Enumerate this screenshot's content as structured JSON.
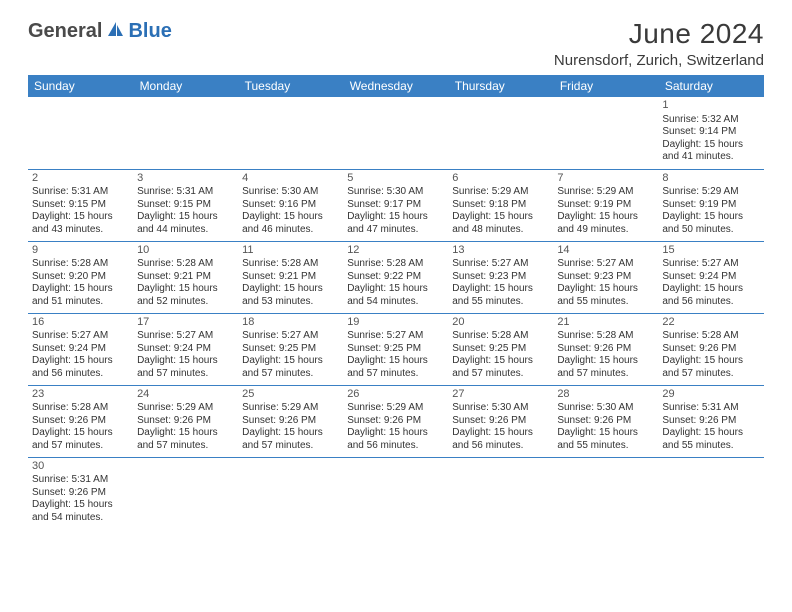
{
  "logo": {
    "part1": "General",
    "part2": "Blue"
  },
  "title": "June 2024",
  "location": "Nurensdorf, Zurich, Switzerland",
  "colors": {
    "header_bg": "#3a80c4",
    "header_text": "#ffffff",
    "border": "#3a80c4",
    "text": "#333333",
    "logo_gray": "#4a4a4a",
    "logo_blue": "#2b6fb5"
  },
  "day_headers": [
    "Sunday",
    "Monday",
    "Tuesday",
    "Wednesday",
    "Thursday",
    "Friday",
    "Saturday"
  ],
  "weeks": [
    [
      null,
      null,
      null,
      null,
      null,
      null,
      {
        "d": "1",
        "sr": "Sunrise: 5:32 AM",
        "ss": "Sunset: 9:14 PM",
        "dl1": "Daylight: 15 hours",
        "dl2": "and 41 minutes."
      }
    ],
    [
      {
        "d": "2",
        "sr": "Sunrise: 5:31 AM",
        "ss": "Sunset: 9:15 PM",
        "dl1": "Daylight: 15 hours",
        "dl2": "and 43 minutes."
      },
      {
        "d": "3",
        "sr": "Sunrise: 5:31 AM",
        "ss": "Sunset: 9:15 PM",
        "dl1": "Daylight: 15 hours",
        "dl2": "and 44 minutes."
      },
      {
        "d": "4",
        "sr": "Sunrise: 5:30 AM",
        "ss": "Sunset: 9:16 PM",
        "dl1": "Daylight: 15 hours",
        "dl2": "and 46 minutes."
      },
      {
        "d": "5",
        "sr": "Sunrise: 5:30 AM",
        "ss": "Sunset: 9:17 PM",
        "dl1": "Daylight: 15 hours",
        "dl2": "and 47 minutes."
      },
      {
        "d": "6",
        "sr": "Sunrise: 5:29 AM",
        "ss": "Sunset: 9:18 PM",
        "dl1": "Daylight: 15 hours",
        "dl2": "and 48 minutes."
      },
      {
        "d": "7",
        "sr": "Sunrise: 5:29 AM",
        "ss": "Sunset: 9:19 PM",
        "dl1": "Daylight: 15 hours",
        "dl2": "and 49 minutes."
      },
      {
        "d": "8",
        "sr": "Sunrise: 5:29 AM",
        "ss": "Sunset: 9:19 PM",
        "dl1": "Daylight: 15 hours",
        "dl2": "and 50 minutes."
      }
    ],
    [
      {
        "d": "9",
        "sr": "Sunrise: 5:28 AM",
        "ss": "Sunset: 9:20 PM",
        "dl1": "Daylight: 15 hours",
        "dl2": "and 51 minutes."
      },
      {
        "d": "10",
        "sr": "Sunrise: 5:28 AM",
        "ss": "Sunset: 9:21 PM",
        "dl1": "Daylight: 15 hours",
        "dl2": "and 52 minutes."
      },
      {
        "d": "11",
        "sr": "Sunrise: 5:28 AM",
        "ss": "Sunset: 9:21 PM",
        "dl1": "Daylight: 15 hours",
        "dl2": "and 53 minutes."
      },
      {
        "d": "12",
        "sr": "Sunrise: 5:28 AM",
        "ss": "Sunset: 9:22 PM",
        "dl1": "Daylight: 15 hours",
        "dl2": "and 54 minutes."
      },
      {
        "d": "13",
        "sr": "Sunrise: 5:27 AM",
        "ss": "Sunset: 9:23 PM",
        "dl1": "Daylight: 15 hours",
        "dl2": "and 55 minutes."
      },
      {
        "d": "14",
        "sr": "Sunrise: 5:27 AM",
        "ss": "Sunset: 9:23 PM",
        "dl1": "Daylight: 15 hours",
        "dl2": "and 55 minutes."
      },
      {
        "d": "15",
        "sr": "Sunrise: 5:27 AM",
        "ss": "Sunset: 9:24 PM",
        "dl1": "Daylight: 15 hours",
        "dl2": "and 56 minutes."
      }
    ],
    [
      {
        "d": "16",
        "sr": "Sunrise: 5:27 AM",
        "ss": "Sunset: 9:24 PM",
        "dl1": "Daylight: 15 hours",
        "dl2": "and 56 minutes."
      },
      {
        "d": "17",
        "sr": "Sunrise: 5:27 AM",
        "ss": "Sunset: 9:24 PM",
        "dl1": "Daylight: 15 hours",
        "dl2": "and 57 minutes."
      },
      {
        "d": "18",
        "sr": "Sunrise: 5:27 AM",
        "ss": "Sunset: 9:25 PM",
        "dl1": "Daylight: 15 hours",
        "dl2": "and 57 minutes."
      },
      {
        "d": "19",
        "sr": "Sunrise: 5:27 AM",
        "ss": "Sunset: 9:25 PM",
        "dl1": "Daylight: 15 hours",
        "dl2": "and 57 minutes."
      },
      {
        "d": "20",
        "sr": "Sunrise: 5:28 AM",
        "ss": "Sunset: 9:25 PM",
        "dl1": "Daylight: 15 hours",
        "dl2": "and 57 minutes."
      },
      {
        "d": "21",
        "sr": "Sunrise: 5:28 AM",
        "ss": "Sunset: 9:26 PM",
        "dl1": "Daylight: 15 hours",
        "dl2": "and 57 minutes."
      },
      {
        "d": "22",
        "sr": "Sunrise: 5:28 AM",
        "ss": "Sunset: 9:26 PM",
        "dl1": "Daylight: 15 hours",
        "dl2": "and 57 minutes."
      }
    ],
    [
      {
        "d": "23",
        "sr": "Sunrise: 5:28 AM",
        "ss": "Sunset: 9:26 PM",
        "dl1": "Daylight: 15 hours",
        "dl2": "and 57 minutes."
      },
      {
        "d": "24",
        "sr": "Sunrise: 5:29 AM",
        "ss": "Sunset: 9:26 PM",
        "dl1": "Daylight: 15 hours",
        "dl2": "and 57 minutes."
      },
      {
        "d": "25",
        "sr": "Sunrise: 5:29 AM",
        "ss": "Sunset: 9:26 PM",
        "dl1": "Daylight: 15 hours",
        "dl2": "and 57 minutes."
      },
      {
        "d": "26",
        "sr": "Sunrise: 5:29 AM",
        "ss": "Sunset: 9:26 PM",
        "dl1": "Daylight: 15 hours",
        "dl2": "and 56 minutes."
      },
      {
        "d": "27",
        "sr": "Sunrise: 5:30 AM",
        "ss": "Sunset: 9:26 PM",
        "dl1": "Daylight: 15 hours",
        "dl2": "and 56 minutes."
      },
      {
        "d": "28",
        "sr": "Sunrise: 5:30 AM",
        "ss": "Sunset: 9:26 PM",
        "dl1": "Daylight: 15 hours",
        "dl2": "and 55 minutes."
      },
      {
        "d": "29",
        "sr": "Sunrise: 5:31 AM",
        "ss": "Sunset: 9:26 PM",
        "dl1": "Daylight: 15 hours",
        "dl2": "and 55 minutes."
      }
    ],
    [
      {
        "d": "30",
        "sr": "Sunrise: 5:31 AM",
        "ss": "Sunset: 9:26 PM",
        "dl1": "Daylight: 15 hours",
        "dl2": "and 54 minutes."
      },
      null,
      null,
      null,
      null,
      null,
      null
    ]
  ]
}
